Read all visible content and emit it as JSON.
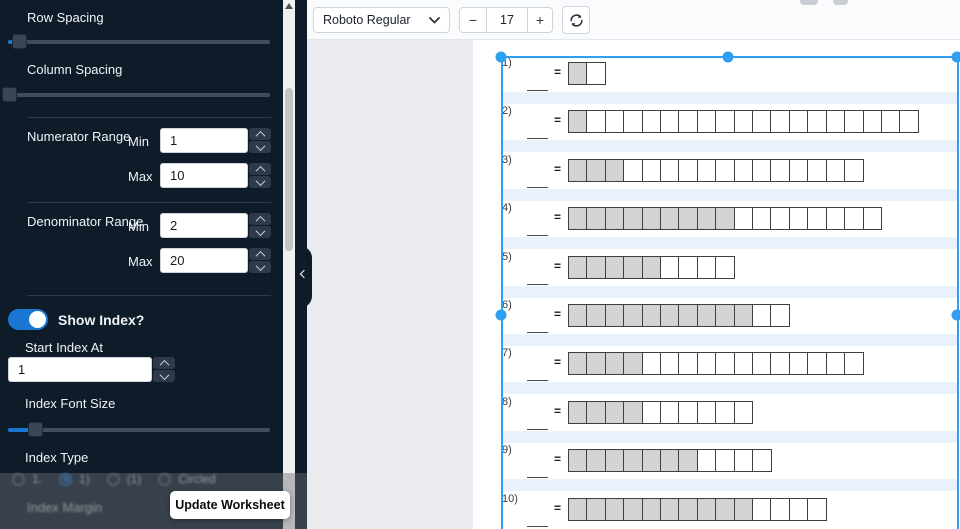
{
  "sidebar": {
    "row_spacing_label": "Row Spacing",
    "column_spacing_label": "Column Spacing",
    "numerator_range": {
      "label": "Numerator Range",
      "min_label": "Min",
      "min_value": "1",
      "max_label": "Max",
      "max_value": "10"
    },
    "denominator_range": {
      "label": "Denominator Range",
      "min_label": "Min",
      "min_value": "2",
      "max_label": "Max",
      "max_value": "20"
    },
    "show_index_label": "Show Index?",
    "start_index_label": "Start Index At",
    "start_index_value": "1",
    "index_font_size_label": "Index Font Size",
    "index_type_label": "Index Type",
    "index_type_options": [
      {
        "label": "1.",
        "selected": false
      },
      {
        "label": "1)",
        "selected": true
      },
      {
        "label": "(1)",
        "selected": false
      },
      {
        "label": "Circled",
        "selected": false
      }
    ],
    "index_margin_label": "Index Margin",
    "update_button_label": "Update Worksheet"
  },
  "toolbar": {
    "font_select_value": "Roboto Regular",
    "decrease_label": "−",
    "font_size_value": "17",
    "increase_label": "+"
  },
  "canvas": {
    "equals_sign": "=",
    "problems": [
      {
        "label": "1)",
        "shaded": 1,
        "cells": 2
      },
      {
        "label": "2)",
        "shaded": 1,
        "cells": 19
      },
      {
        "label": "3)",
        "shaded": 3,
        "cells": 16
      },
      {
        "label": "4)",
        "shaded": 9,
        "cells": 17
      },
      {
        "label": "5)",
        "shaded": 5,
        "cells": 9
      },
      {
        "label": "6)",
        "shaded": 10,
        "cells": 12
      },
      {
        "label": "7)",
        "shaded": 4,
        "cells": 16
      },
      {
        "label": "8)",
        "shaded": 4,
        "cells": 10
      },
      {
        "label": "9)",
        "shaded": 7,
        "cells": 11
      },
      {
        "label": "10)",
        "shaded": 10,
        "cells": 14
      }
    ]
  },
  "colors": {
    "sidebar_bg": "#0e1b29",
    "accent_blue": "#1976d2",
    "selection_blue": "#2f9ff2",
    "shaded_cell": "#d3d3d3",
    "stripe_blue": "#e9f1fc"
  }
}
